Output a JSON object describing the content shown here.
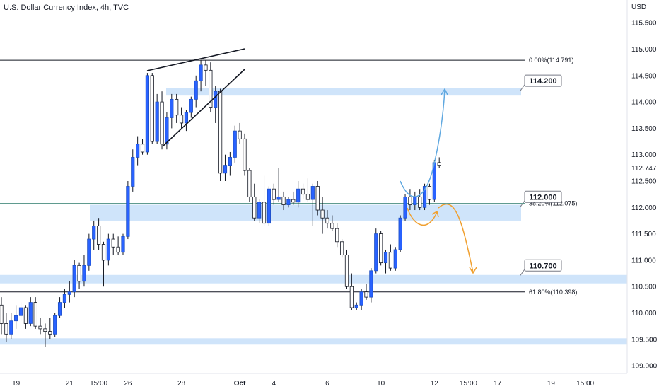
{
  "header": {
    "title": "U.S. Dollar Currency Index, 4h, TVC"
  },
  "chart_data": {
    "type": "candlestick",
    "title": "U.S. Dollar Currency Index, 4h, TVC",
    "currency_label": "USD",
    "ylim": [
      108.85,
      115.9
    ],
    "y_ticks": [
      109.0,
      109.5,
      110.0,
      110.5,
      111.0,
      111.5,
      112.0,
      112.5,
      113.0,
      113.5,
      114.0,
      114.5,
      115.0,
      115.5
    ],
    "y_tick_labels": [
      "109.000",
      "109.500",
      "110.000",
      "110.500",
      "111.000",
      "111.500",
      "112.000",
      "112.500",
      "113.000",
      "113.500",
      "114.000",
      "114.500",
      "115.000",
      "115.500"
    ],
    "current_price": {
      "value": 112.747,
      "label": "112.747"
    },
    "x_ticks": [
      {
        "i": 3,
        "label": "19"
      },
      {
        "i": 14,
        "label": "21"
      },
      {
        "i": 20,
        "label": "15:00"
      },
      {
        "i": 26,
        "label": "26"
      },
      {
        "i": 37,
        "label": "28"
      },
      {
        "i": 49,
        "label": "Oct"
      },
      {
        "i": 56,
        "label": "4"
      },
      {
        "i": 67,
        "label": "6"
      },
      {
        "i": 78,
        "label": "10"
      },
      {
        "i": 89,
        "label": "12"
      },
      {
        "i": 96,
        "label": "15:00"
      },
      {
        "i": 102,
        "label": "17"
      },
      {
        "i": 113,
        "label": "19"
      },
      {
        "i": 120,
        "label": "15:00"
      }
    ],
    "candles": [
      [
        110.15,
        110.3,
        109.6,
        109.8
      ],
      [
        109.8,
        110.0,
        109.45,
        109.6
      ],
      [
        109.6,
        110.0,
        109.5,
        109.85
      ],
      [
        109.85,
        110.15,
        109.7,
        109.95
      ],
      [
        109.95,
        110.2,
        109.85,
        110.1
      ],
      [
        110.1,
        110.15,
        109.7,
        109.8
      ],
      [
        109.8,
        110.3,
        109.75,
        110.2
      ],
      [
        110.2,
        110.3,
        109.7,
        109.75
      ],
      [
        109.75,
        109.9,
        109.6,
        109.7
      ],
      [
        109.7,
        109.8,
        109.35,
        109.65
      ],
      [
        109.65,
        109.9,
        109.5,
        109.6
      ],
      [
        109.6,
        110.0,
        109.55,
        109.95
      ],
      [
        109.95,
        110.3,
        109.9,
        110.2
      ],
      [
        110.2,
        110.45,
        110.1,
        110.35
      ],
      [
        110.35,
        110.6,
        110.2,
        110.4
      ],
      [
        110.4,
        111.0,
        110.3,
        110.9
      ],
      [
        110.9,
        110.95,
        110.45,
        110.6
      ],
      [
        110.6,
        111.1,
        110.5,
        110.9
      ],
      [
        110.9,
        111.5,
        110.8,
        111.4
      ],
      [
        111.4,
        111.75,
        111.2,
        111.65
      ],
      [
        111.65,
        111.8,
        111.2,
        111.3
      ],
      [
        111.3,
        111.35,
        110.5,
        111.0
      ],
      [
        111.0,
        111.5,
        110.9,
        111.4
      ],
      [
        111.4,
        111.5,
        111.1,
        111.25
      ],
      [
        111.25,
        111.45,
        111.1,
        111.15
      ],
      [
        111.15,
        111.5,
        111.1,
        111.45
      ],
      [
        111.45,
        112.5,
        111.4,
        112.4
      ],
      [
        112.4,
        113.1,
        112.3,
        112.95
      ],
      [
        112.95,
        113.35,
        112.8,
        113.2
      ],
      [
        113.2,
        113.3,
        113.0,
        113.05
      ],
      [
        113.05,
        114.55,
        113.0,
        114.5
      ],
      [
        114.5,
        114.55,
        113.2,
        113.25
      ],
      [
        113.25,
        114.15,
        113.2,
        114.0
      ],
      [
        114.0,
        114.2,
        113.1,
        113.2
      ],
      [
        113.2,
        113.8,
        113.1,
        113.7
      ],
      [
        113.7,
        114.15,
        113.5,
        114.05
      ],
      [
        114.05,
        114.15,
        113.6,
        113.75
      ],
      [
        113.75,
        113.9,
        113.5,
        113.6
      ],
      [
        113.6,
        113.85,
        113.45,
        113.8
      ],
      [
        113.8,
        114.1,
        113.7,
        114.05
      ],
      [
        114.05,
        114.5,
        113.9,
        114.4
      ],
      [
        114.4,
        114.8,
        114.2,
        114.7
      ],
      [
        114.7,
        114.79,
        114.3,
        114.6
      ],
      [
        114.6,
        114.75,
        113.8,
        113.9
      ],
      [
        113.9,
        114.3,
        113.6,
        114.2
      ],
      [
        114.2,
        114.25,
        112.5,
        112.65
      ],
      [
        112.65,
        113.0,
        112.5,
        112.8
      ],
      [
        112.8,
        113.05,
        112.6,
        112.95
      ],
      [
        112.95,
        113.55,
        112.85,
        113.45
      ],
      [
        113.45,
        113.6,
        113.2,
        113.3
      ],
      [
        113.3,
        113.4,
        112.6,
        112.7
      ],
      [
        112.7,
        112.75,
        112.1,
        112.2
      ],
      [
        112.2,
        112.45,
        111.75,
        111.8
      ],
      [
        111.8,
        112.15,
        111.7,
        112.1
      ],
      [
        112.1,
        112.6,
        111.65,
        111.7
      ],
      [
        111.7,
        112.4,
        111.65,
        112.35
      ],
      [
        112.35,
        112.45,
        112.05,
        112.15
      ],
      [
        112.15,
        112.75,
        112.1,
        112.2
      ],
      [
        112.2,
        112.3,
        111.95,
        112.05
      ],
      [
        112.05,
        112.2,
        112.0,
        112.15
      ],
      [
        112.15,
        112.3,
        112.05,
        112.1
      ],
      [
        112.1,
        112.5,
        112.0,
        112.35
      ],
      [
        112.35,
        112.45,
        112.15,
        112.25
      ],
      [
        112.25,
        112.55,
        112.1,
        112.15
      ],
      [
        112.15,
        112.45,
        111.65,
        112.4
      ],
      [
        112.4,
        112.5,
        111.85,
        111.95
      ],
      [
        111.95,
        112.2,
        111.5,
        111.8
      ],
      [
        111.8,
        111.95,
        111.6,
        111.7
      ],
      [
        111.7,
        111.85,
        111.55,
        111.6
      ],
      [
        111.6,
        111.7,
        111.25,
        111.35
      ],
      [
        111.35,
        111.4,
        111.05,
        111.1
      ],
      [
        111.1,
        111.2,
        110.45,
        110.5
      ],
      [
        110.5,
        110.75,
        110.05,
        110.1
      ],
      [
        110.1,
        110.2,
        110.05,
        110.15
      ],
      [
        110.15,
        110.45,
        110.05,
        110.4
      ],
      [
        110.4,
        110.55,
        110.25,
        110.3
      ],
      [
        110.3,
        110.85,
        110.2,
        110.8
      ],
      [
        110.8,
        111.6,
        110.75,
        111.5
      ],
      [
        111.5,
        111.55,
        110.9,
        110.95
      ],
      [
        110.95,
        111.2,
        110.75,
        111.15
      ],
      [
        111.15,
        111.3,
        110.8,
        110.85
      ],
      [
        110.85,
        111.25,
        110.8,
        111.2
      ],
      [
        111.2,
        111.85,
        111.15,
        111.8
      ],
      [
        111.8,
        112.25,
        111.75,
        112.2
      ],
      [
        112.2,
        112.35,
        111.95,
        112.05
      ],
      [
        112.05,
        112.3,
        111.95,
        112.2
      ],
      [
        112.2,
        112.35,
        111.95,
        112.0
      ],
      [
        112.0,
        112.45,
        111.95,
        112.4
      ],
      [
        112.4,
        112.45,
        112.05,
        112.15
      ],
      [
        112.15,
        112.9,
        112.1,
        112.85
      ],
      [
        112.85,
        112.95,
        112.75,
        112.8
      ]
    ],
    "zones": [
      {
        "from": 114.12,
        "to": 114.26,
        "label": "114.200"
      },
      {
        "from": 111.75,
        "to": 112.05,
        "label": "112.000"
      },
      {
        "from": 110.56,
        "to": 110.72,
        "label": "110.700"
      },
      {
        "from": 109.4,
        "to": 109.52,
        "label": ""
      }
    ],
    "fib_levels": [
      {
        "value": 114.791,
        "label": "0.00%(114.791)"
      },
      {
        "value": 112.075,
        "label": "38.20%(112.075)"
      },
      {
        "value": 110.398,
        "label": "61.80%(110.398)"
      }
    ],
    "callouts": [
      {
        "label": "114.200",
        "value": 114.2
      },
      {
        "label": "112.000",
        "value": 112.0
      },
      {
        "label": "110.700",
        "value": 110.7
      }
    ],
    "colors": {
      "up": "#2962ff",
      "down": "#ffffff",
      "wick": "#131722",
      "zone": "#cfe4fa",
      "blue_arrow": "#5fa8e0",
      "orange_arrow": "#f0a030",
      "teal_line": "#2a7a6a"
    }
  }
}
